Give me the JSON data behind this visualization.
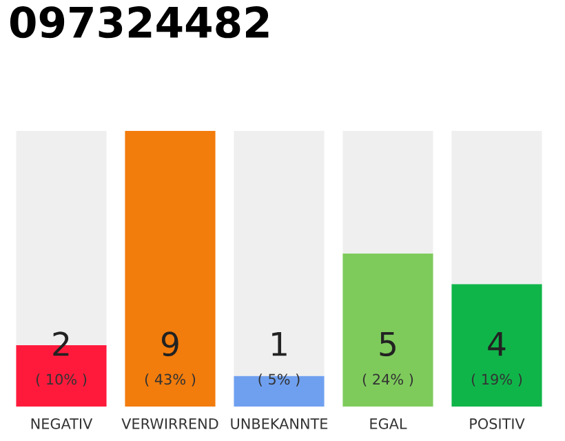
{
  "chart_data": {
    "type": "bar",
    "title": "097324482",
    "categories": [
      "NEGATIV",
      "VERWIRREND",
      "UNBEKANNTE",
      "EGAL",
      "POSITIV"
    ],
    "stacked": true,
    "series": [
      {
        "colors": [
          "#ff1a3c",
          "#f27c0c",
          "#6fa0f0",
          "#7ecb5c",
          "#10b54a"
        ],
        "values": [
          2,
          9,
          1,
          5,
          4
        ],
        "value_labels": [
          "2",
          "9",
          "1",
          "5",
          "4"
        ]
      },
      {
        "color": "#efefef",
        "values": [
          7,
          0,
          8,
          4,
          5
        ]
      }
    ],
    "ylim": [
      0,
      9
    ],
    "tick_labels": "x",
    "grid": false,
    "legend": false,
    "annotations": [
      "( 10% )",
      "( 43% )",
      "( 5% )",
      "( 24% )",
      "( 19% )"
    ]
  }
}
